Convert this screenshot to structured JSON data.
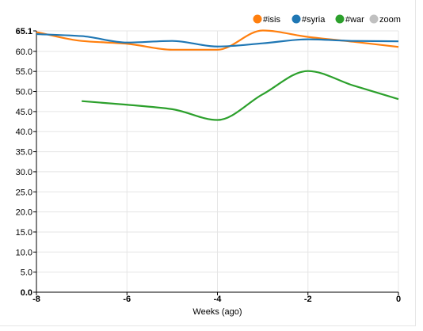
{
  "chart_data": {
    "type": "line",
    "xlabel": "Weeks (ago)",
    "x_ticks": [
      "-8",
      "-6",
      "-4",
      "-2",
      "0"
    ],
    "y_ticks": [
      "0.0",
      "5.0",
      "10.0",
      "15.0",
      "20.0",
      "25.0",
      "30.0",
      "35.0",
      "40.0",
      "45.0",
      "50.0",
      "55.0",
      "60.0",
      "65.1"
    ],
    "xlim": [
      -8,
      0
    ],
    "ylim": [
      0,
      65.1
    ],
    "grid": true,
    "legend_position": "top-right",
    "legend": [
      {
        "label": "#isis",
        "color": "#ff7f0e",
        "enabled": true
      },
      {
        "label": "#syria",
        "color": "#1f77b4",
        "enabled": true
      },
      {
        "label": "#war",
        "color": "#2ca02c",
        "enabled": true
      },
      {
        "label": "zoom",
        "color": "#c0c0c0",
        "enabled": false
      }
    ],
    "series": [
      {
        "name": "#isis",
        "color": "#ff7f0e",
        "points": [
          [
            -8,
            64.8
          ],
          [
            -7,
            62.6
          ],
          [
            -6,
            61.9
          ],
          [
            -5,
            60.4
          ],
          [
            -4,
            60.4
          ],
          [
            -3,
            65.2
          ],
          [
            -2,
            63.6
          ],
          [
            -1,
            62.4
          ],
          [
            0,
            61.1
          ]
        ]
      },
      {
        "name": "#syria",
        "color": "#1f77b4",
        "points": [
          [
            -8,
            64.3
          ],
          [
            -7,
            63.8
          ],
          [
            -6,
            62.2
          ],
          [
            -5,
            62.6
          ],
          [
            -4,
            61.2
          ],
          [
            -3,
            62.0
          ],
          [
            -2,
            63.0
          ],
          [
            -1,
            62.6
          ],
          [
            0,
            62.5
          ]
        ]
      },
      {
        "name": "#war",
        "color": "#2ca02c",
        "points": [
          [
            -7,
            47.6
          ],
          [
            -6,
            46.7
          ],
          [
            -5,
            45.6
          ],
          [
            -4,
            42.9
          ],
          [
            -3,
            49.3
          ],
          [
            -2,
            55.1
          ],
          [
            -1,
            51.5
          ],
          [
            0,
            48.1
          ]
        ]
      }
    ]
  }
}
